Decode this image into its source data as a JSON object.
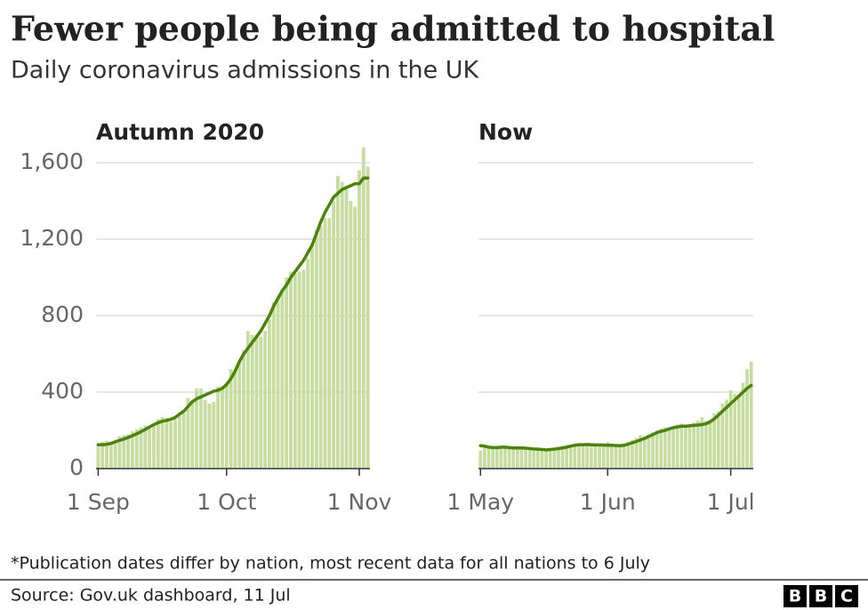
{
  "title": "Fewer people being admitted to hospital",
  "subtitle": "Daily coronavirus admissions in the UK",
  "note": "*Publication dates differ by nation, most recent data for all nations to 6 July",
  "source": "Source: Gov.uk dashboard, 11 Jul",
  "logo": [
    "B",
    "B",
    "C"
  ],
  "chart_data": [
    {
      "type": "bar",
      "title": "Autumn 2020",
      "categories": [
        "1 Sep",
        null,
        null,
        null,
        null,
        null,
        null,
        null,
        null,
        null,
        null,
        null,
        null,
        null,
        null,
        null,
        null,
        null,
        null,
        null,
        null,
        null,
        null,
        null,
        null,
        null,
        null,
        null,
        null,
        null,
        "1 Oct",
        null,
        null,
        null,
        null,
        null,
        null,
        null,
        null,
        null,
        null,
        null,
        null,
        null,
        null,
        null,
        null,
        null,
        null,
        null,
        null,
        null,
        null,
        null,
        null,
        null,
        null,
        null,
        null,
        null,
        null,
        "1 Nov",
        null,
        null
      ],
      "series": [
        {
          "type": "bar",
          "color": "#c7dca0",
          "values": [
            130,
            140,
            145,
            140,
            150,
            170,
            175,
            180,
            195,
            205,
            215,
            225,
            210,
            230,
            260,
            270,
            265,
            245,
            260,
            275,
            290,
            370,
            350,
            420,
            420,
            360,
            340,
            350,
            430,
            430,
            450,
            520,
            520,
            560,
            620,
            720,
            700,
            700,
            690,
            720,
            780,
            870,
            900,
            930,
            1000,
            1030,
            1020,
            1030,
            1040,
            1100,
            1180,
            1250,
            1270,
            1310,
            1310,
            1400,
            1530,
            1500,
            1480,
            1400,
            1370,
            1560,
            1680,
            1580
          ]
        },
        {
          "type": "line",
          "color": "#4b8209",
          "values": [
            125,
            125,
            127,
            132,
            140,
            148,
            155,
            163,
            172,
            182,
            193,
            205,
            218,
            230,
            240,
            248,
            252,
            258,
            268,
            285,
            300,
            325,
            350,
            365,
            375,
            385,
            395,
            405,
            410,
            420,
            440,
            470,
            510,
            560,
            600,
            630,
            660,
            690,
            720,
            760,
            800,
            850,
            890,
            930,
            960,
            1000,
            1030,
            1060,
            1090,
            1130,
            1170,
            1230,
            1290,
            1340,
            1380,
            1420,
            1440,
            1460,
            1470,
            1480,
            1490,
            1490,
            1520,
            1520
          ]
        }
      ],
      "ylim": [
        0,
        1600
      ],
      "yticks": [
        0,
        400,
        800,
        {
          "value": 1200,
          "label": "1,200"
        },
        {
          "value": 1600,
          "label": "1,600"
        }
      ],
      "show_tick_labels": true,
      "grid": true
    },
    {
      "type": "bar",
      "title": "Now",
      "categories": [
        "1 May",
        null,
        null,
        null,
        null,
        null,
        null,
        null,
        null,
        null,
        null,
        null,
        null,
        null,
        null,
        null,
        null,
        null,
        null,
        null,
        null,
        null,
        null,
        null,
        null,
        null,
        null,
        null,
        null,
        null,
        null,
        "1 Jun",
        null,
        null,
        null,
        null,
        null,
        null,
        null,
        null,
        null,
        null,
        null,
        null,
        null,
        null,
        null,
        null,
        null,
        null,
        null,
        null,
        null,
        null,
        null,
        null,
        null,
        null,
        null,
        null,
        null,
        "1 Jul",
        null,
        null,
        null,
        null,
        null
      ],
      "series": [
        {
          "type": "bar",
          "color": "#c7dca0",
          "values": [
            95,
            120,
            115,
            105,
            110,
            115,
            110,
            108,
            110,
            105,
            100,
            105,
            110,
            100,
            98,
            95,
            100,
            105,
            108,
            115,
            120,
            125,
            118,
            122,
            130,
            128,
            132,
            120,
            128,
            125,
            130,
            140,
            120,
            125,
            115,
            130,
            140,
            150,
            160,
            175,
            170,
            180,
            190,
            200,
            210,
            215,
            210,
            220,
            230,
            235,
            230,
            225,
            240,
            250,
            270,
            250,
            255,
            290,
            300,
            340,
            360,
            410,
            390,
            380,
            450,
            520,
            560
          ]
        },
        {
          "type": "line",
          "color": "#4b8209",
          "values": [
            120,
            118,
            112,
            110,
            110,
            112,
            112,
            110,
            108,
            108,
            108,
            107,
            105,
            103,
            102,
            100,
            98,
            100,
            102,
            105,
            108,
            112,
            118,
            122,
            125,
            125,
            126,
            125,
            124,
            124,
            123,
            122,
            122,
            121,
            120,
            122,
            128,
            135,
            142,
            150,
            158,
            168,
            178,
            188,
            195,
            200,
            208,
            214,
            218,
            222,
            222,
            224,
            226,
            228,
            230,
            235,
            245,
            260,
            280,
            300,
            320,
            340,
            360,
            380,
            400,
            420,
            435
          ]
        }
      ],
      "ylim": [
        0,
        1600
      ],
      "yticks": [
        0,
        400,
        800,
        1200,
        1600
      ],
      "show_tick_labels": false,
      "grid": true
    }
  ]
}
